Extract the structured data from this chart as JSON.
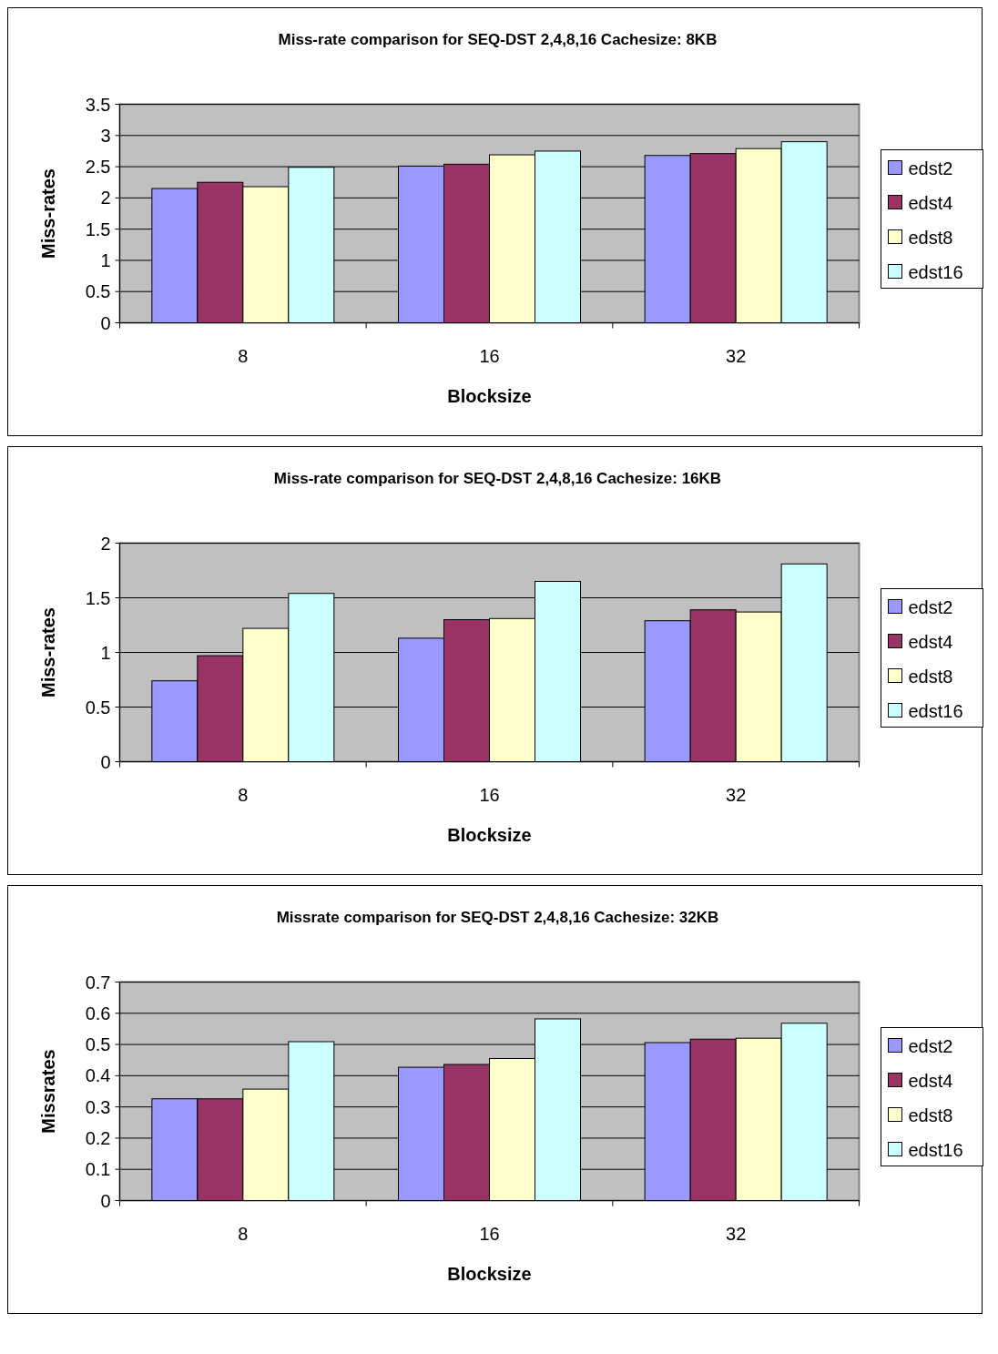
{
  "chart_data": [
    {
      "type": "bar",
      "title": "Miss-rate comparison for SEQ-DST 2,4,8,16 Cachesize: 8KB",
      "xlabel": "Blocksize",
      "ylabel": "Miss-rates",
      "categories": [
        "8",
        "16",
        "32"
      ],
      "ylim": [
        0,
        3.5
      ],
      "yticks": [
        0,
        0.5,
        1,
        1.5,
        2,
        2.5,
        3,
        3.5
      ],
      "grid": "y",
      "legend": "right",
      "series": [
        {
          "name": "edst2",
          "color": "#9999ff",
          "values": [
            2.15,
            2.51,
            2.68
          ]
        },
        {
          "name": "edst4",
          "color": "#993366",
          "values": [
            2.25,
            2.54,
            2.71
          ]
        },
        {
          "name": "edst8",
          "color": "#ffffcc",
          "values": [
            2.18,
            2.69,
            2.79
          ]
        },
        {
          "name": "edst16",
          "color": "#ccffff",
          "values": [
            2.49,
            2.75,
            2.9
          ]
        }
      ]
    },
    {
      "type": "bar",
      "title": "Miss-rate comparison for SEQ-DST 2,4,8,16 Cachesize: 16KB",
      "xlabel": "Blocksize",
      "ylabel": "Miss-rates",
      "categories": [
        "8",
        "16",
        "32"
      ],
      "ylim": [
        0,
        2
      ],
      "yticks": [
        0,
        0.5,
        1,
        1.5,
        2
      ],
      "grid": "y",
      "legend": "right",
      "series": [
        {
          "name": "edst2",
          "color": "#9999ff",
          "values": [
            0.74,
            1.13,
            1.29
          ]
        },
        {
          "name": "edst4",
          "color": "#993366",
          "values": [
            0.97,
            1.3,
            1.39
          ]
        },
        {
          "name": "edst8",
          "color": "#ffffcc",
          "values": [
            1.22,
            1.31,
            1.37
          ]
        },
        {
          "name": "edst16",
          "color": "#ccffff",
          "values": [
            1.54,
            1.65,
            1.81
          ]
        }
      ]
    },
    {
      "type": "bar",
      "title": "Missrate comparison for SEQ-DST 2,4,8,16 Cachesize: 32KB",
      "xlabel": "Blocksize",
      "ylabel": "Missrates",
      "categories": [
        "8",
        "16",
        "32"
      ],
      "ylim": [
        0,
        0.7
      ],
      "yticks": [
        0,
        0.1,
        0.2,
        0.3,
        0.4,
        0.5,
        0.6,
        0.7
      ],
      "grid": "y",
      "legend": "right",
      "series": [
        {
          "name": "edst2",
          "color": "#9999ff",
          "values": [
            0.326,
            0.427,
            0.506
          ]
        },
        {
          "name": "edst4",
          "color": "#993366",
          "values": [
            0.326,
            0.436,
            0.517
          ]
        },
        {
          "name": "edst8",
          "color": "#ffffcc",
          "values": [
            0.357,
            0.455,
            0.52
          ]
        },
        {
          "name": "edst16",
          "color": "#ccffff",
          "values": [
            0.509,
            0.582,
            0.568
          ]
        }
      ]
    }
  ]
}
